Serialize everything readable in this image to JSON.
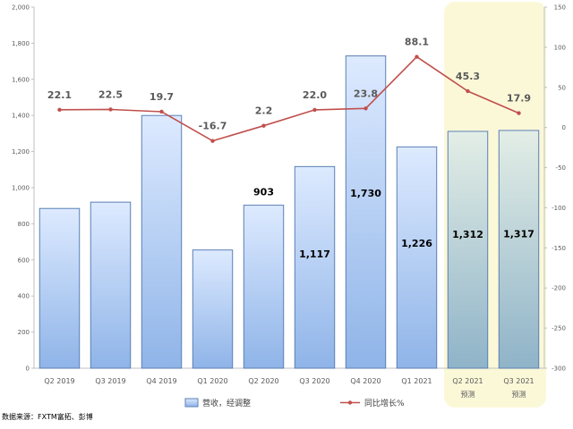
{
  "chart_data": {
    "type": "bar",
    "categories": [
      "Q2 2019",
      "Q3 2019",
      "Q4 2019",
      "Q1 2020",
      "Q2 2020",
      "Q3 2020",
      "Q4 2020",
      "Q1 2021",
      "Q2 2021",
      "Q3 2021"
    ],
    "category_sublabels": [
      "",
      "",
      "",
      "",
      "",
      "",
      "",
      "",
      "预测",
      "预测"
    ],
    "series": [
      {
        "name": "营收，经调整",
        "type": "bar",
        "axis": "left",
        "values": [
          885,
          920,
          1400,
          655,
          903,
          1117,
          1730,
          1226,
          1312,
          1317
        ],
        "data_labels": [
          "",
          "",
          "",
          "",
          "903",
          "1,117",
          "1,730",
          "1,226",
          "1,312",
          "1,317"
        ]
      },
      {
        "name": "同比增长%",
        "type": "line",
        "axis": "right",
        "values": [
          22.1,
          22.5,
          19.7,
          -16.7,
          2.2,
          22.0,
          23.8,
          88.1,
          45.3,
          17.9
        ],
        "data_labels": [
          "22.1",
          "22.5",
          "19.7",
          "-16.7",
          "2.2",
          "22.0",
          "23.8",
          "88.1",
          "45.3",
          "17.9"
        ]
      }
    ],
    "forecast_categories": [
      "Q2 2021",
      "Q3 2021"
    ],
    "ylim_left": [
      0,
      2000
    ],
    "yticks_left": [
      "0",
      "200",
      "400",
      "600",
      "800",
      "1,000",
      "1,200",
      "1,400",
      "1,600",
      "1,800",
      "2,000"
    ],
    "ylim_right": [
      -300,
      150
    ],
    "yticks_right": [
      "-300",
      "-250",
      "-200",
      "-150",
      "-100",
      "-50",
      "0",
      "50",
      "100",
      "150"
    ],
    "grid": false,
    "legend_position": "bottom",
    "source": "数据来源：FXTM富拓、彭博",
    "colors": {
      "bar_fill_top": "#ddeaff",
      "bar_fill_bottom": "#8fb4e8",
      "bar_stroke": "#5b7fb5",
      "forecast_fill_top": "#e3eee6",
      "forecast_fill_bottom": "#8fb3c8",
      "line": "#c0504d",
      "highlight": "#fbf8d8"
    }
  }
}
